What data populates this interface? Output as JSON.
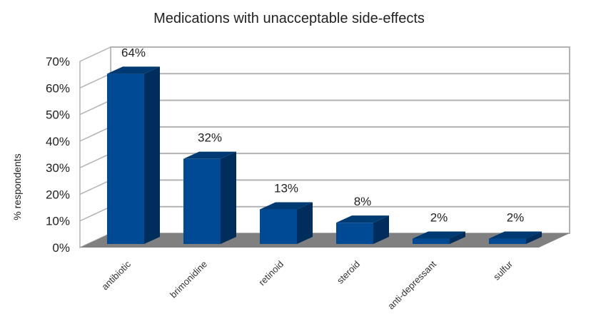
{
  "chart_data": {
    "type": "bar",
    "title": "Medications with unacceptable side-effects",
    "xlabel": "",
    "ylabel": "% respondents",
    "categories": [
      "antibiotic",
      "brimonidine",
      "retinoid",
      "steroid",
      "anti-depressant",
      "sulfur"
    ],
    "values": [
      64,
      32,
      13,
      8,
      2,
      2
    ],
    "data_labels": [
      "64%",
      "32%",
      "13%",
      "8%",
      "2%",
      "2%"
    ],
    "ylim": [
      0,
      70
    ],
    "yticks": [
      0,
      10,
      20,
      30,
      40,
      50,
      60,
      70
    ],
    "ytick_labels": [
      "0%",
      "10%",
      "20%",
      "30%",
      "40%",
      "50%",
      "60%",
      "70%"
    ],
    "grid": true,
    "legend": "none",
    "style": "3d-column",
    "colors": {
      "bar_front": "#004a93",
      "bar_side": "#002e5c",
      "bar_top": "#003a73",
      "floor": "#808080",
      "grid": "#b3b3b3"
    }
  }
}
